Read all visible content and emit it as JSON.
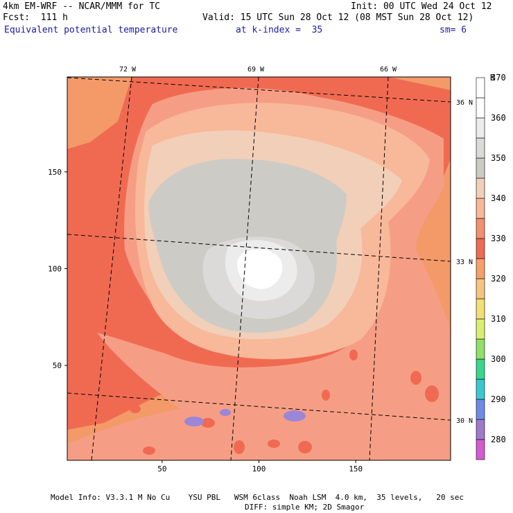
{
  "header": {
    "model": "4km EM-WRF -- NCAR/MMM for TC",
    "forecast": "Fcst:  111 h",
    "field": "Equivalent potential temperature",
    "init": "Init: 00 UTC Wed 24 Oct 12",
    "valid": "Valid: 15 UTC Sun 28 Oct 12 (08 MST Sun 28 Oct 12)",
    "kindex": "at k-index =  35",
    "smooth": "sm= 6"
  },
  "footer": {
    "line1": "Model Info: V3.3.1 M No Cu    YSU PBL   WSM 6class  Noah LSM  4.0 km,  35 levels,   20 sec",
    "line2": "DIFF: simple KM; 2D Smagor"
  },
  "chart_data": {
    "type": "heatmap",
    "x_ticks": [
      50,
      100,
      150
    ],
    "y_ticks": [
      50,
      100,
      150
    ],
    "x_range": [
      1,
      199
    ],
    "y_range": [
      1,
      199
    ],
    "lon_labels": [
      "72 W",
      "69 W",
      "66 W"
    ],
    "lat_labels": [
      "36 N",
      "33 N",
      "30 N"
    ],
    "colorbar": {
      "unit": "K",
      "labels": [
        280,
        290,
        300,
        310,
        320,
        330,
        340,
        350,
        360,
        370
      ],
      "colors": [
        "#d65bd0",
        "#a179cc",
        "#6f8ae8",
        "#3ac8d0",
        "#39d68f",
        "#90e06a",
        "#d9ef72",
        "#f3df74",
        "#f6c47e",
        "#f6a069",
        "#f06a52",
        "#f39070",
        "#f8b89a",
        "#f2cfb8",
        "#cdcbc6",
        "#dbdad8",
        "#ececec",
        "#ffffff",
        "#ffffff"
      ]
    },
    "field_colors": {
      "orange": "#f49a69",
      "red": "#f06a52",
      "salmon": "#f59e85",
      "peach": "#f8b89a",
      "tan": "#f2cfb8",
      "gray": "#cdcbc6",
      "lightgray": "#dbdad8",
      "verylight": "#ececec",
      "white": "#ffffff"
    }
  }
}
